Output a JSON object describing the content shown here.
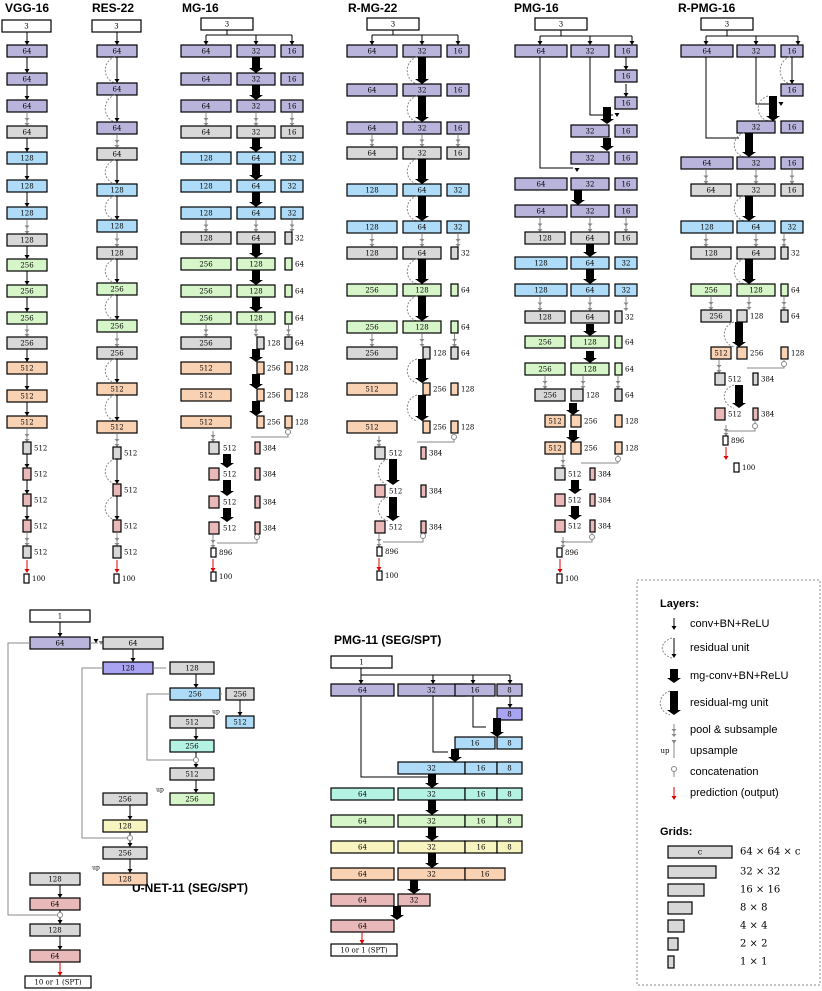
{
  "titles": {
    "vgg": "VGG-16",
    "res": "RES-22",
    "mg": "MG-16",
    "rmg": "R-MG-22",
    "pmg": "PMG-16",
    "rpmg": "R-PMG-16",
    "unet": "U-NET-11 (SEG/SPT)",
    "pmg11": "PMG-11 (SEG/SPT)"
  },
  "colors": {
    "white": "#ffffff",
    "purple": "#b8b4dc",
    "gray": "#d8d8d8",
    "blue": "#aedcf8",
    "green": "#d6f5c8",
    "orange": "#f9d2b4",
    "pink": "#e9b9b9",
    "violet": "#a9a4f2",
    "teal": "#b4f3e4",
    "yellow": "#f8f4c0",
    "stroke": "#000000",
    "arrow": "#000000",
    "pool_arrow": "#888888",
    "prediction": "#e00000"
  },
  "vgg": {
    "input": "3",
    "c64": "64",
    "c128": "128",
    "c256": "256",
    "c512": "512",
    "out": "100"
  },
  "res": {
    "input": "3",
    "c64": "64",
    "c128": "128",
    "c256": "256",
    "c512": "512",
    "out": "100"
  },
  "mg": {
    "input": "3",
    "v896": "896",
    "v384": "384",
    "out": "100"
  },
  "rmg": {
    "input": "3",
    "v896": "896",
    "v384": "384",
    "out": "100"
  },
  "pmg": {
    "input": "3",
    "v896": "896",
    "v384": "384",
    "out": "100"
  },
  "rpmg": {
    "input": "3",
    "v896": "896",
    "v384": "384",
    "out": "100"
  },
  "unet": {
    "input": "1",
    "output": "10 or 1 (SPT)",
    "up": "up"
  },
  "pmg11": {
    "input": "1",
    "output": "10 or 1 (SPT)"
  },
  "legend": {
    "layers_title": "Layers:",
    "layers": [
      {
        "kind": "conv",
        "label": "conv+BN+ReLU"
      },
      {
        "kind": "res",
        "label": "residual unit"
      },
      {
        "kind": "mgconv",
        "label": "mg-conv+BN+ReLU"
      },
      {
        "kind": "resmg",
        "label": "residual-mg unit"
      },
      {
        "kind": "pool",
        "label": "pool & subsample"
      },
      {
        "kind": "upsample",
        "label": "upsample",
        "prefix": "up"
      },
      {
        "kind": "concat",
        "label": "concatenation"
      },
      {
        "kind": "pred",
        "label": "prediction (output)"
      }
    ],
    "grids_title": "Grids:",
    "grid_box_label": "c",
    "grids": [
      "64 × 64 × c",
      "32 × 32",
      "16 × 16",
      "8 × 8",
      "4 × 4",
      "2 × 2",
      "1 × 1"
    ]
  }
}
